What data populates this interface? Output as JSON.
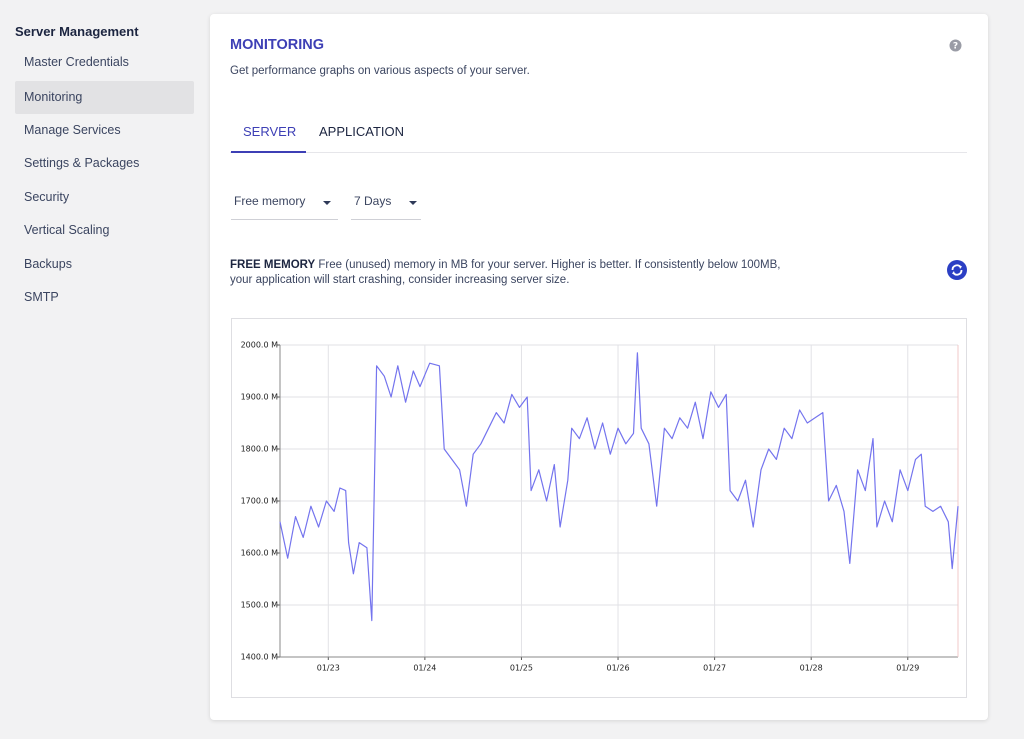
{
  "sidebar": {
    "title": "Server Management",
    "items": [
      "Master Credentials",
      "Monitoring",
      "Manage Services",
      "Settings & Packages",
      "Security",
      "Vertical Scaling",
      "Backups",
      "SMTP"
    ]
  },
  "header": {
    "title": "MONITORING",
    "subtitle": "Get performance graphs on various aspects of your server."
  },
  "tabs": [
    "SERVER",
    "APPLICATION"
  ],
  "filters": [
    "Free memory",
    "7 Days"
  ],
  "description": {
    "heading": "FREE MEMORY",
    "text": "Free (unused) memory in MB for your server. Higher is better. If consistently below 100MB, your application will start crashing, consider increasing server size."
  },
  "chart_data": {
    "type": "line",
    "color": "#7474ee",
    "grid": true,
    "x": [
      22.5,
      22.58,
      22.66,
      22.74,
      22.82,
      22.9,
      22.98,
      23.06,
      23.12,
      23.18,
      23.21,
      23.26,
      23.32,
      23.4,
      23.45,
      23.5,
      23.58,
      23.65,
      23.72,
      23.8,
      23.88,
      23.95,
      24.05,
      24.15,
      24.2,
      24.28,
      24.36,
      24.43,
      24.5,
      24.58,
      24.66,
      24.74,
      24.82,
      24.9,
      24.98,
      25.06,
      25.1,
      25.18,
      25.26,
      25.34,
      25.4,
      25.48,
      25.52,
      25.6,
      25.68,
      25.76,
      25.84,
      25.92,
      26.0,
      26.08,
      26.16,
      26.2,
      26.24,
      26.32,
      26.4,
      26.48,
      26.56,
      26.64,
      26.72,
      26.8,
      26.88,
      26.96,
      27.04,
      27.12,
      27.16,
      27.24,
      27.32,
      27.4,
      27.48,
      27.56,
      27.64,
      27.72,
      27.8,
      27.88,
      27.96,
      28.04,
      28.12,
      28.18,
      28.26,
      28.34,
      28.4,
      28.48,
      28.56,
      28.64,
      28.68,
      28.76,
      28.84,
      28.92,
      29.0,
      29.08,
      29.14,
      29.18,
      29.26,
      29.34,
      29.42,
      29.46,
      29.52
    ],
    "values": [
      1660,
      1590,
      1670,
      1630,
      1690,
      1650,
      1700,
      1680,
      1725,
      1720,
      1620,
      1560,
      1620,
      1610,
      1470,
      1960,
      1940,
      1900,
      1960,
      1890,
      1950,
      1920,
      1965,
      1960,
      1800,
      1780,
      1760,
      1690,
      1790,
      1810,
      1840,
      1870,
      1850,
      1905,
      1880,
      1900,
      1720,
      1760,
      1700,
      1770,
      1650,
      1740,
      1840,
      1820,
      1860,
      1800,
      1850,
      1790,
      1840,
      1810,
      1830,
      1985,
      1840,
      1810,
      1690,
      1840,
      1820,
      1860,
      1840,
      1890,
      1820,
      1910,
      1880,
      1905,
      1720,
      1700,
      1740,
      1650,
      1760,
      1800,
      1780,
      1840,
      1820,
      1875,
      1850,
      1860,
      1870,
      1700,
      1730,
      1680,
      1580,
      1760,
      1720,
      1820,
      1650,
      1700,
      1660,
      1760,
      1720,
      1780,
      1790,
      1690,
      1680,
      1690,
      1660,
      1570,
      1690
    ],
    "xlim": [
      22.5,
      29.52
    ],
    "xticks": [
      {
        "value": 23,
        "label": "01/23"
      },
      {
        "value": 24,
        "label": "01/24"
      },
      {
        "value": 25,
        "label": "01/25"
      },
      {
        "value": 26,
        "label": "01/26"
      },
      {
        "value": 27,
        "label": "01/27"
      },
      {
        "value": 28,
        "label": "01/28"
      },
      {
        "value": 29,
        "label": "01/29"
      }
    ],
    "ylim": [
      1400,
      2000
    ],
    "yticks": [
      {
        "value": 1400,
        "label": "1400.0 M"
      },
      {
        "value": 1500,
        "label": "1500.0 M"
      },
      {
        "value": 1600,
        "label": "1600.0 M"
      },
      {
        "value": 1700,
        "label": "1700.0 M"
      },
      {
        "value": 1800,
        "label": "1800.0 M"
      },
      {
        "value": 1900,
        "label": "1900.0 M"
      },
      {
        "value": 2000,
        "label": "2000.0 M"
      }
    ]
  }
}
